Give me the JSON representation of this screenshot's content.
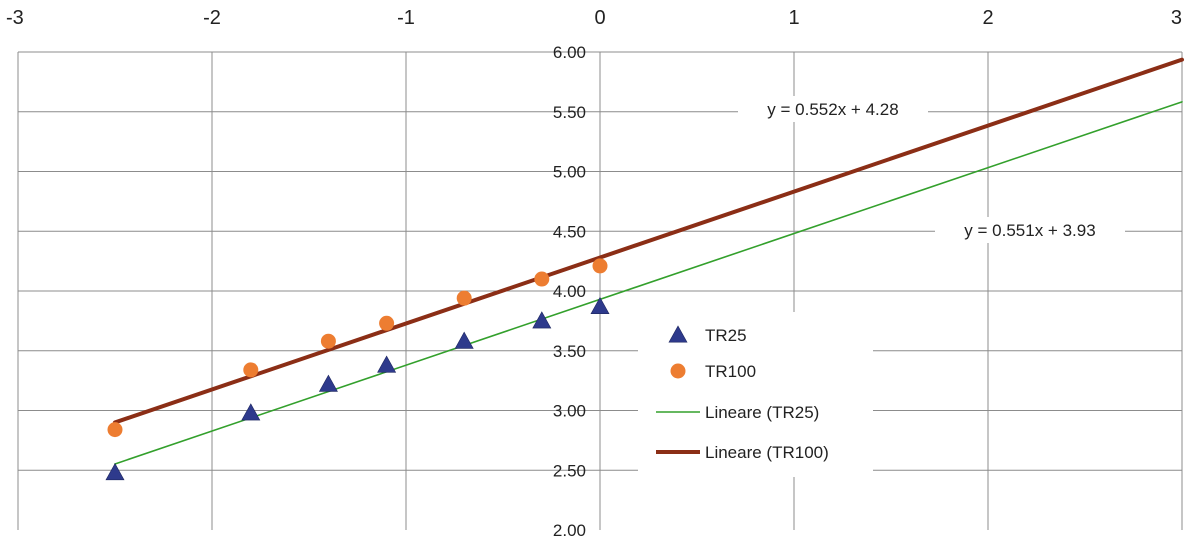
{
  "chart_data": {
    "type": "scatter",
    "title": "",
    "xlabel": "",
    "ylabel": "",
    "xlim": [
      -3,
      3
    ],
    "ylim": [
      2.0,
      6.0
    ],
    "x_ticks": [
      "-3",
      "-2",
      "-1",
      "0",
      "1",
      "2",
      "3"
    ],
    "y_ticks": [
      "2.00",
      "2.50",
      "3.00",
      "3.50",
      "4.00",
      "4.50",
      "5.00",
      "5.50",
      "6.00"
    ],
    "grid": true,
    "series": [
      {
        "name": "TR25",
        "marker": "triangle",
        "color": "#2E3A8C",
        "points": [
          {
            "x": -2.5,
            "y": 2.48
          },
          {
            "x": -1.8,
            "y": 2.98
          },
          {
            "x": -1.4,
            "y": 3.22
          },
          {
            "x": -1.1,
            "y": 3.38
          },
          {
            "x": -0.7,
            "y": 3.58
          },
          {
            "x": -0.3,
            "y": 3.75
          },
          {
            "x": 0.0,
            "y": 3.87
          }
        ]
      },
      {
        "name": "TR100",
        "marker": "circle",
        "color": "#ED7D31",
        "points": [
          {
            "x": -2.5,
            "y": 2.84
          },
          {
            "x": -1.8,
            "y": 3.34
          },
          {
            "x": -1.4,
            "y": 3.58
          },
          {
            "x": -1.1,
            "y": 3.73
          },
          {
            "x": -0.7,
            "y": 3.94
          },
          {
            "x": -0.3,
            "y": 4.1
          },
          {
            "x": 0.0,
            "y": 4.21
          }
        ]
      }
    ],
    "trendlines": [
      {
        "name": "Lineare (TR25)",
        "slope": 0.551,
        "intercept": 3.93,
        "x_range": [
          -2.5,
          3
        ],
        "color": "#33A02C",
        "equation": "y = 0.551x + 3.93"
      },
      {
        "name": "Lineare (TR100)",
        "slope": 0.552,
        "intercept": 4.28,
        "x_range": [
          -2.5,
          3
        ],
        "color": "#8B2E16",
        "equation": "y = 0.552x + 4.28"
      }
    ],
    "legend": {
      "placement": "center-right",
      "entries": [
        "TR25",
        "TR100",
        "Lineare (TR25)",
        "Lineare (TR100)"
      ]
    }
  }
}
